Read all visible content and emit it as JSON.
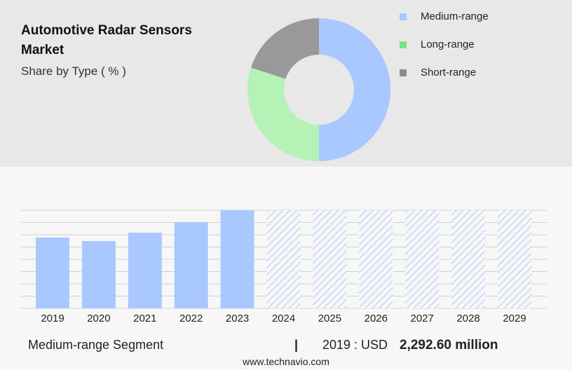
{
  "chart_data": [
    {
      "type": "pie",
      "title": "Automotive Radar Sensors Market",
      "subtitle": "Share by Type ( % )",
      "categories": [
        "Medium-range",
        "Long-range",
        "Short-range"
      ],
      "values": [
        50,
        30,
        20
      ],
      "colors": [
        "#a8c8ff",
        "#b5f2b5",
        "#999999"
      ],
      "legend_colors": [
        "#a8c8ff",
        "#7ddf87",
        "#8c8c8c"
      ]
    },
    {
      "type": "bar",
      "color": "#a8c8ff",
      "categories": [
        "2019",
        "2020",
        "2021",
        "2022",
        "2023",
        "2024",
        "2025",
        "2026",
        "2027",
        "2028",
        "2029"
      ],
      "values": [
        2292.6,
        2180,
        2451,
        2792,
        3178,
        null,
        null,
        null,
        null,
        null,
        null
      ]
    }
  ],
  "footer": {
    "segment": "Medium-range Segment",
    "year_label": "2019 : USD",
    "value": "2,292.60 million",
    "source": "www.technavio.com"
  }
}
